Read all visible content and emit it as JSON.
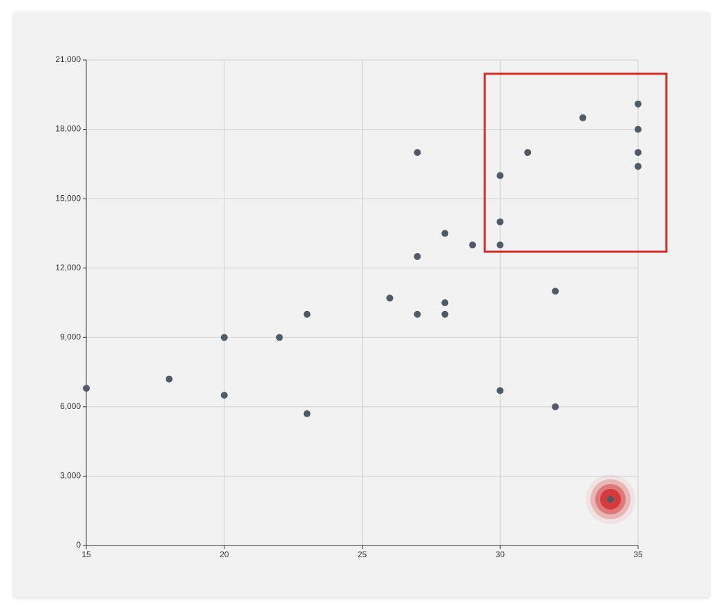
{
  "chart_data": {
    "type": "scatter",
    "x": [
      15,
      18,
      20,
      20,
      22,
      23,
      23,
      26,
      27,
      27,
      27,
      28,
      28,
      28,
      29,
      30,
      30,
      30,
      30,
      31,
      32,
      32,
      33,
      34,
      35,
      35,
      35,
      35
    ],
    "values": [
      6800,
      7200,
      9000,
      6500,
      9000,
      10000,
      5700,
      10700,
      17000,
      12500,
      10000,
      13500,
      10500,
      10000,
      13000,
      16000,
      14000,
      13000,
      6700,
      17000,
      11000,
      6000,
      18500,
      2000,
      19100,
      18000,
      17000,
      16400
    ],
    "color": "#4f5b66",
    "highlight_color": "#d32f2f",
    "xlim": [
      15,
      35
    ],
    "xticks": [
      15,
      20,
      25,
      30,
      35
    ],
    "ylim": [
      0,
      21000
    ],
    "yticks": [
      0,
      {
        "value": 3000,
        "label": "3,000"
      },
      {
        "value": 6000,
        "label": "6,000"
      },
      {
        "value": 9000,
        "label": "9,000"
      },
      {
        "value": 12000,
        "label": "12,000"
      },
      {
        "value": 15000,
        "label": "15,000"
      },
      {
        "value": 18000,
        "label": "18,000"
      },
      {
        "value": 21000,
        "label": "21,000"
      }
    ],
    "grid": true
  }
}
